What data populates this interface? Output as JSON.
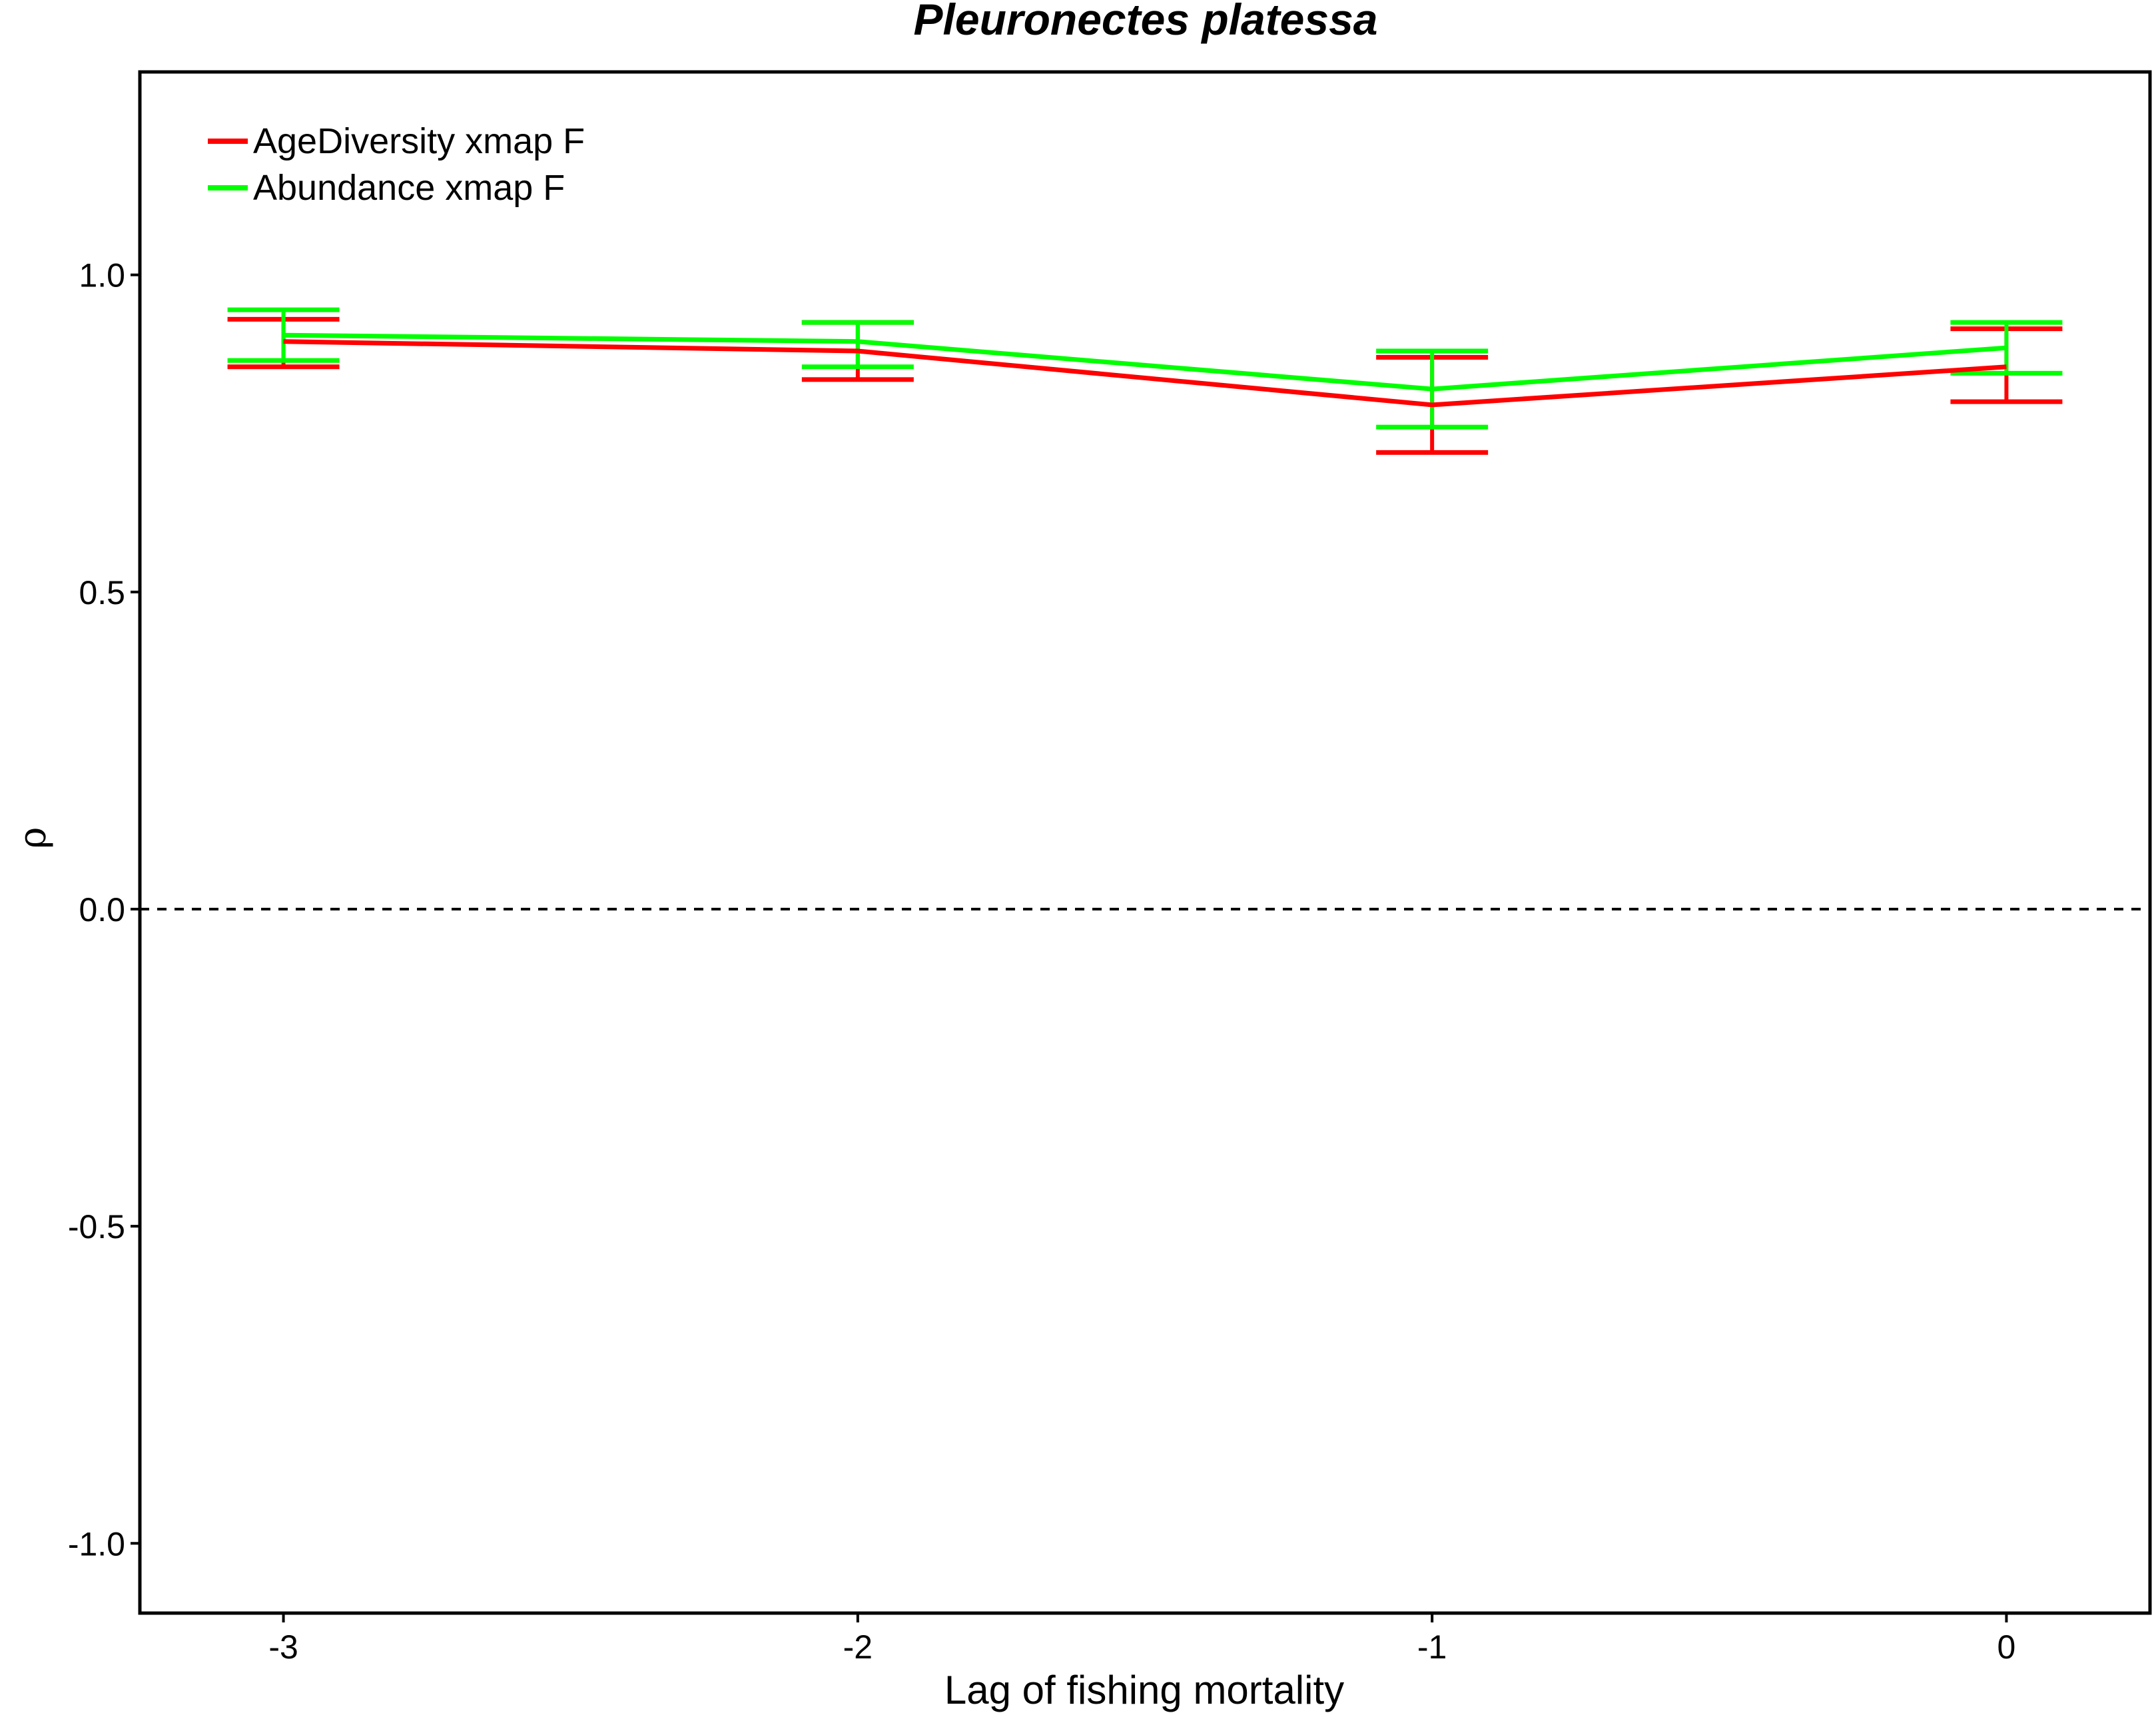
{
  "chart_data": {
    "type": "line",
    "title": "Pleuronectes platessa",
    "xlabel": "Lag of fishing mortality",
    "ylabel": "ρ",
    "x": [
      -3,
      -2,
      -1,
      0
    ],
    "x_ticks": [
      {
        "value": -3,
        "label": "-3"
      },
      {
        "value": -2,
        "label": "-2"
      },
      {
        "value": -1,
        "label": "-1"
      },
      {
        "value": 0,
        "label": "0"
      }
    ],
    "y_ticks": [
      {
        "value": 1.0,
        "label": "1.0"
      },
      {
        "value": 0.5,
        "label": "0.5"
      },
      {
        "value": 0.0,
        "label": "0.0"
      },
      {
        "value": -0.5,
        "label": "-0.5"
      },
      {
        "value": -1.0,
        "label": "-1.0"
      }
    ],
    "xlim": [
      -3.25,
      0.25
    ],
    "ylim": [
      -1.11,
      1.32
    ],
    "reference_line": {
      "y": 0,
      "style": "dashed"
    },
    "grid": false,
    "legend_position": "top-left",
    "series": [
      {
        "name": "AgeDiversity xmap F",
        "color": "#ff0000",
        "values": [
          0.895,
          0.88,
          0.795,
          0.855
        ],
        "lower": [
          0.855,
          0.835,
          0.72,
          0.8
        ],
        "upper": [
          0.93,
          0.925,
          0.87,
          0.915
        ]
      },
      {
        "name": "Abundance xmap F",
        "color": "#00ff00",
        "values": [
          0.905,
          0.895,
          0.82,
          0.885
        ],
        "lower": [
          0.865,
          0.855,
          0.76,
          0.845
        ],
        "upper": [
          0.945,
          0.925,
          0.88,
          0.925
        ]
      }
    ]
  }
}
